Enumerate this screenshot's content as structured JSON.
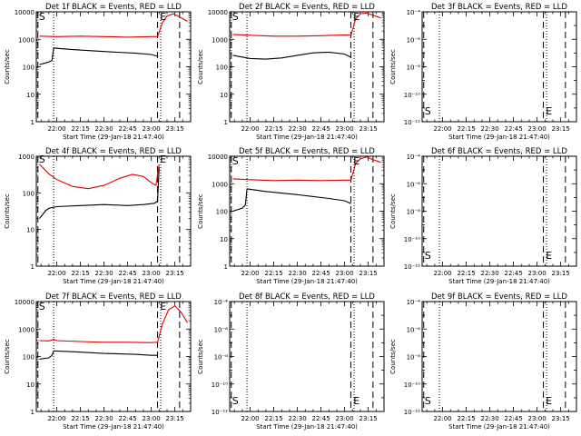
{
  "chart_data": [
    {
      "type": "line",
      "title": "Det 1f BLACK = Events, RED = LLD",
      "ylabel": "Counts/sec",
      "xlabel": "Start Time (29-Jan-18 21:47:40)",
      "yscale": "log",
      "ylim": [
        1,
        10000
      ],
      "xlim": [
        "21:47",
        "23:25"
      ],
      "x_ticks": [
        "22:00",
        "22:15",
        "22:30",
        "22:45",
        "23:00",
        "23:15"
      ],
      "y_ticks": [
        "1",
        "10",
        "100",
        "1000",
        "10000"
      ],
      "markers": [
        {
          "label": "S",
          "time": "21:48"
        },
        {
          "label": "E",
          "time": "23:05"
        }
      ],
      "dashed_lines": [
        "21:48",
        "23:04",
        "23:18"
      ],
      "dotted_lines": [
        "21:58",
        "23:06"
      ],
      "series": [
        {
          "color": "#000000",
          "points": [
            [
              "21:49",
              120
            ],
            [
              "21:55",
              150
            ],
            [
              "21:57",
              170
            ],
            [
              "21:58",
              480
            ],
            [
              "22:10",
              420
            ],
            [
              "22:30",
              360
            ],
            [
              "22:50",
              310
            ],
            [
              "23:00",
              280
            ],
            [
              "23:04",
              240
            ]
          ]
        },
        {
          "color": "#e00000",
          "points": [
            [
              "21:49",
              1300
            ],
            [
              "22:00",
              1250
            ],
            [
              "22:15",
              1300
            ],
            [
              "22:30",
              1250
            ],
            [
              "22:45",
              1200
            ],
            [
              "23:00",
              1250
            ],
            [
              "23:04",
              1250
            ],
            [
              "23:07",
              4000
            ],
            [
              "23:10",
              7000
            ],
            [
              "23:14",
              8500
            ],
            [
              "23:18",
              6500
            ],
            [
              "23:23",
              4500
            ]
          ]
        }
      ]
    },
    {
      "type": "line",
      "title": "Det 2f BLACK = Events, RED = LLD",
      "ylabel": "Counts/sec",
      "xlabel": "Start Time (29-Jan-18 21:47:40)",
      "yscale": "log",
      "ylim": [
        1,
        10000
      ],
      "xlim": [
        "21:47",
        "23:25"
      ],
      "x_ticks": [
        "22:00",
        "22:15",
        "22:30",
        "22:45",
        "23:00",
        "23:15"
      ],
      "y_ticks": [
        "1",
        "10",
        "100",
        "1000",
        "10000"
      ],
      "markers": [
        {
          "label": "S",
          "time": "21:48"
        },
        {
          "label": "E",
          "time": "23:05"
        }
      ],
      "dashed_lines": [
        "21:48",
        "23:04",
        "23:18"
      ],
      "dotted_lines": [
        "21:58",
        "23:06"
      ],
      "series": [
        {
          "color": "#000000",
          "points": [
            [
              "21:49",
              260
            ],
            [
              "22:00",
              200
            ],
            [
              "22:10",
              190
            ],
            [
              "22:20",
              210
            ],
            [
              "22:30",
              260
            ],
            [
              "22:40",
              320
            ],
            [
              "22:50",
              340
            ],
            [
              "23:00",
              290
            ],
            [
              "23:04",
              220
            ]
          ]
        },
        {
          "color": "#e00000",
          "points": [
            [
              "21:49",
              1500
            ],
            [
              "22:00",
              1400
            ],
            [
              "22:15",
              1300
            ],
            [
              "22:30",
              1300
            ],
            [
              "22:45",
              1350
            ],
            [
              "23:00",
              1450
            ],
            [
              "23:04",
              1400
            ],
            [
              "23:07",
              5500
            ],
            [
              "23:10",
              8500
            ],
            [
              "23:14",
              9000
            ],
            [
              "23:18",
              7500
            ],
            [
              "23:23",
              6000
            ]
          ]
        }
      ]
    },
    {
      "type": "line",
      "title": "Det 3f BLACK = Events, RED = LLD",
      "ylabel": "Counts/sec",
      "xlabel": "Start Time (29-Jan-18 21:47:40)",
      "yscale": "log",
      "ylim": [
        1e-12,
        0.0001
      ],
      "xlim": [
        "21:47",
        "23:25"
      ],
      "x_ticks": [
        "22:00",
        "22:15",
        "22:30",
        "22:45",
        "23:00",
        "23:15"
      ],
      "y_ticks": [
        "10⁻¹²",
        "10⁻¹⁰",
        "10⁻⁸",
        "10⁻⁶",
        "10⁻⁴"
      ],
      "markers": [
        {
          "label": "S",
          "time": "21:48"
        },
        {
          "label": "E",
          "time": "23:05"
        }
      ],
      "dashed_lines": [
        "21:48",
        "23:04",
        "23:18"
      ],
      "dotted_lines": [
        "21:58",
        "23:06"
      ],
      "series": []
    },
    {
      "type": "line",
      "title": "Det 4f BLACK = Events, RED = LLD",
      "ylabel": "Counts/sec",
      "xlabel": "Start Time (29-Jan-18 21:47:40)",
      "yscale": "log",
      "ylim": [
        1,
        1000
      ],
      "xlim": [
        "21:47",
        "23:25"
      ],
      "x_ticks": [
        "22:00",
        "22:15",
        "22:30",
        "22:45",
        "23:00",
        "23:15"
      ],
      "y_ticks": [
        "1",
        "10",
        "100",
        "1000"
      ],
      "markers": [
        {
          "label": "S",
          "time": "21:48"
        },
        {
          "label": "E",
          "time": "23:05"
        }
      ],
      "dashed_lines": [
        "21:48",
        "23:04",
        "23:18"
      ],
      "dotted_lines": [
        "21:58",
        "23:06"
      ],
      "series": [
        {
          "color": "#000000",
          "points": [
            [
              "21:49",
              20
            ],
            [
              "21:53",
              33
            ],
            [
              "21:55",
              38
            ],
            [
              "22:00",
              42
            ],
            [
              "22:15",
              45
            ],
            [
              "22:30",
              48
            ],
            [
              "22:45",
              45
            ],
            [
              "22:55",
              48
            ],
            [
              "23:02",
              52
            ],
            [
              "23:04",
              60
            ],
            [
              "23:05",
              500
            ]
          ]
        },
        {
          "color": "#e00000",
          "points": [
            [
              "21:49",
              600
            ],
            [
              "21:55",
              330
            ],
            [
              "22:00",
              230
            ],
            [
              "22:10",
              150
            ],
            [
              "22:20",
              130
            ],
            [
              "22:30",
              160
            ],
            [
              "22:40",
              250
            ],
            [
              "22:48",
              320
            ],
            [
              "22:55",
              280
            ],
            [
              "23:00",
              190
            ],
            [
              "23:03",
              160
            ],
            [
              "23:05",
              600
            ]
          ]
        }
      ]
    },
    {
      "type": "line",
      "title": "Det 5f BLACK = Events, RED = LLD",
      "ylabel": "Counts/sec",
      "xlabel": "Start Time (29-Jan-18 21:47:40)",
      "yscale": "log",
      "ylim": [
        1,
        10000
      ],
      "xlim": [
        "21:47",
        "23:25"
      ],
      "x_ticks": [
        "22:00",
        "22:15",
        "22:30",
        "22:45",
        "23:00",
        "23:15"
      ],
      "y_ticks": [
        "1",
        "10",
        "100",
        "1000",
        "10000"
      ],
      "markers": [
        {
          "label": "S",
          "time": "21:48"
        },
        {
          "label": "E",
          "time": "23:05"
        }
      ],
      "dashed_lines": [
        "21:48",
        "23:04",
        "23:18"
      ],
      "dotted_lines": [
        "21:58",
        "23:06"
      ],
      "series": [
        {
          "color": "#000000",
          "points": [
            [
              "21:49",
              100
            ],
            [
              "21:55",
              130
            ],
            [
              "21:57",
              170
            ],
            [
              "21:58",
              650
            ],
            [
              "22:10",
              520
            ],
            [
              "22:30",
              400
            ],
            [
              "22:50",
              290
            ],
            [
              "23:00",
              240
            ],
            [
              "23:04",
              190
            ]
          ]
        },
        {
          "color": "#e00000",
          "points": [
            [
              "21:49",
              1500
            ],
            [
              "22:00",
              1400
            ],
            [
              "22:15",
              1300
            ],
            [
              "22:30",
              1350
            ],
            [
              "22:45",
              1300
            ],
            [
              "23:00",
              1350
            ],
            [
              "23:04",
              1350
            ],
            [
              "23:07",
              5500
            ],
            [
              "23:10",
              8000
            ],
            [
              "23:14",
              9500
            ],
            [
              "23:18",
              7500
            ],
            [
              "23:23",
              6000
            ]
          ]
        }
      ]
    },
    {
      "type": "line",
      "title": "Det 6f BLACK = Events, RED = LLD",
      "ylabel": "Counts/sec",
      "xlabel": "Start Time (29-Jan-18 21:47:40)",
      "yscale": "log",
      "ylim": [
        1e-12,
        0.0001
      ],
      "xlim": [
        "21:47",
        "23:25"
      ],
      "x_ticks": [
        "22:00",
        "22:15",
        "22:30",
        "22:45",
        "23:00",
        "23:15"
      ],
      "y_ticks": [
        "10⁻¹²",
        "10⁻¹⁰",
        "10⁻⁸",
        "10⁻⁶",
        "10⁻⁴"
      ],
      "markers": [
        {
          "label": "S",
          "time": "21:48"
        },
        {
          "label": "E",
          "time": "23:05"
        }
      ],
      "dashed_lines": [
        "21:48",
        "23:04",
        "23:18"
      ],
      "dotted_lines": [
        "21:58",
        "23:06"
      ],
      "series": []
    },
    {
      "type": "line",
      "title": "Det 7f BLACK = Events, RED = LLD",
      "ylabel": "Counts/sec",
      "xlabel": "Start Time (29-Jan-18 21:47:40)",
      "yscale": "log",
      "ylim": [
        1,
        10000
      ],
      "xlim": [
        "21:47",
        "23:25"
      ],
      "x_ticks": [
        "22:00",
        "22:15",
        "22:30",
        "22:45",
        "23:00",
        "23:15"
      ],
      "y_ticks": [
        "1",
        "10",
        "100",
        "1000",
        "10000"
      ],
      "markers": [
        {
          "label": "S",
          "time": "21:48"
        },
        {
          "label": "E",
          "time": "23:05"
        }
      ],
      "dashed_lines": [
        "21:48",
        "23:04",
        "23:18"
      ],
      "dotted_lines": [
        "21:58",
        "23:06"
      ],
      "series": [
        {
          "color": "#000000",
          "points": [
            [
              "21:49",
              80
            ],
            [
              "21:55",
              90
            ],
            [
              "21:57",
              110
            ],
            [
              "21:58",
              160
            ],
            [
              "22:10",
              150
            ],
            [
              "22:30",
              130
            ],
            [
              "22:50",
              120
            ],
            [
              "23:00",
              110
            ],
            [
              "23:04",
              110
            ]
          ]
        },
        {
          "color": "#e00000",
          "points": [
            [
              "21:49",
              380
            ],
            [
              "21:55",
              370
            ],
            [
              "21:58",
              420
            ],
            [
              "22:00",
              380
            ],
            [
              "22:15",
              350
            ],
            [
              "22:30",
              330
            ],
            [
              "22:45",
              330
            ],
            [
              "23:00",
              320
            ],
            [
              "23:04",
              330
            ],
            [
              "23:07",
              1500
            ],
            [
              "23:11",
              5000
            ],
            [
              "23:15",
              7000
            ],
            [
              "23:19",
              4000
            ],
            [
              "23:23",
              1700
            ]
          ]
        }
      ]
    },
    {
      "type": "line",
      "title": "Det 8f BLACK = Events, RED = LLD",
      "ylabel": "Counts/sec",
      "xlabel": "Start Time (29-Jan-18 21:47:40)",
      "yscale": "log",
      "ylim": [
        1e-12,
        0.0001
      ],
      "xlim": [
        "21:47",
        "23:25"
      ],
      "x_ticks": [
        "22:00",
        "22:15",
        "22:30",
        "22:45",
        "23:00",
        "23:15"
      ],
      "y_ticks": [
        "10⁻¹²",
        "10⁻¹⁰",
        "10⁻⁸",
        "10⁻⁶",
        "10⁻⁴"
      ],
      "markers": [
        {
          "label": "S",
          "time": "21:48"
        },
        {
          "label": "E",
          "time": "23:05"
        }
      ],
      "dashed_lines": [
        "21:48",
        "23:04",
        "23:18"
      ],
      "dotted_lines": [
        "21:58",
        "23:06"
      ],
      "series": []
    },
    {
      "type": "line",
      "title": "Det 9f BLACK = Events, RED = LLD",
      "ylabel": "Counts/sec",
      "xlabel": "Start Time (29-Jan-18 21:47:40)",
      "yscale": "log",
      "ylim": [
        1e-12,
        0.0001
      ],
      "xlim": [
        "21:47",
        "23:25"
      ],
      "x_ticks": [
        "22:00",
        "22:15",
        "22:30",
        "22:45",
        "23:00",
        "23:15"
      ],
      "y_ticks": [
        "10⁻¹²",
        "10⁻¹⁰",
        "10⁻⁸",
        "10⁻⁶",
        "10⁻⁴"
      ],
      "markers": [
        {
          "label": "S",
          "time": "21:48"
        },
        {
          "label": "E",
          "time": "23:05"
        }
      ],
      "dashed_lines": [
        "21:48",
        "23:04",
        "23:18"
      ],
      "dotted_lines": [
        "21:58",
        "23:06"
      ],
      "series": []
    }
  ]
}
